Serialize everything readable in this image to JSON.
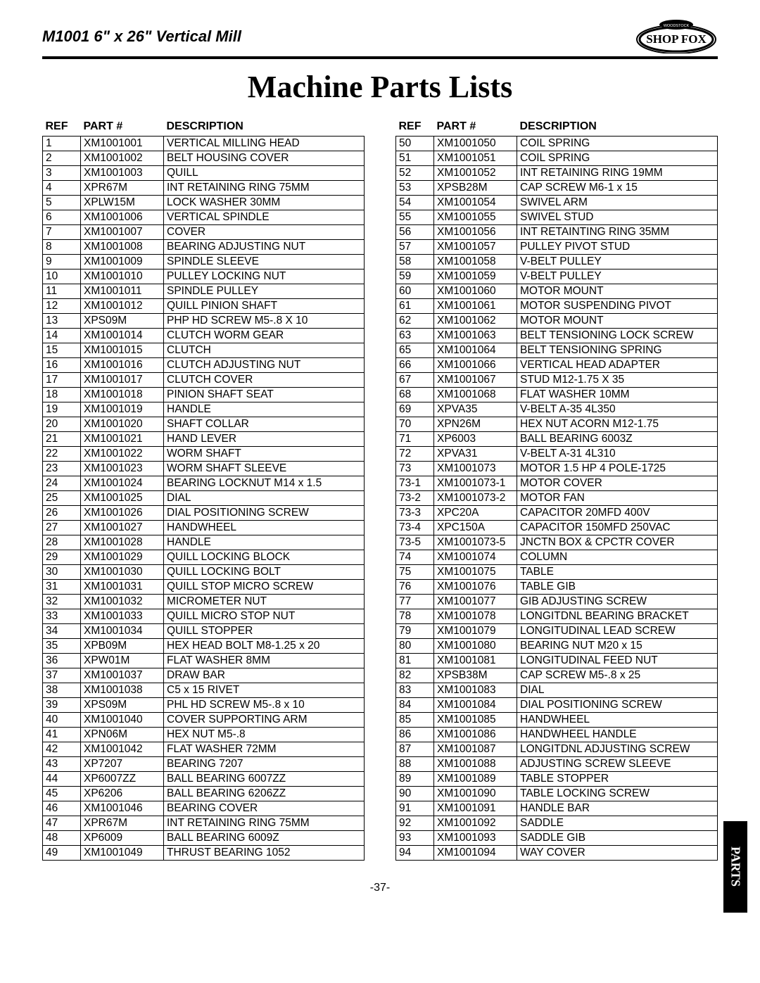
{
  "header": {
    "model": "M1001 6\" x 26\" Vertical Mill",
    "brand": "SHOP FOX",
    "brand_sub": "WOODSTOCK"
  },
  "title": "Machine Parts Lists",
  "page_number": "-37-",
  "side_tab": "PARTS",
  "columns": {
    "ref": "REF",
    "part": "PART #",
    "desc": "DESCRIPTION"
  },
  "table_left": [
    {
      "ref": "1",
      "part": "XM1001001",
      "desc": "VERTICAL MILLING HEAD"
    },
    {
      "ref": "2",
      "part": "XM1001002",
      "desc": "BELT HOUSING COVER"
    },
    {
      "ref": "3",
      "part": "XM1001003",
      "desc": "QUILL"
    },
    {
      "ref": "4",
      "part": "XPR67M",
      "desc": "INT RETAINING RING 75MM"
    },
    {
      "ref": "5",
      "part": "XPLW15M",
      "desc": "LOCK WASHER 30MM"
    },
    {
      "ref": "6",
      "part": "XM1001006",
      "desc": "VERTICAL SPINDLE"
    },
    {
      "ref": "7",
      "part": "XM1001007",
      "desc": "COVER"
    },
    {
      "ref": "8",
      "part": "XM1001008",
      "desc": "BEARING ADJUSTING NUT"
    },
    {
      "ref": "9",
      "part": "XM1001009",
      "desc": "SPINDLE SLEEVE"
    },
    {
      "ref": "10",
      "part": "XM1001010",
      "desc": "PULLEY LOCKING NUT"
    },
    {
      "ref": "11",
      "part": "XM1001011",
      "desc": "SPINDLE PULLEY"
    },
    {
      "ref": "12",
      "part": "XM1001012",
      "desc": "QUILL PINION SHAFT"
    },
    {
      "ref": "13",
      "part": "XPS09M",
      "desc": "PHP HD SCREW M5-.8 X 10"
    },
    {
      "ref": "14",
      "part": "XM1001014",
      "desc": "CLUTCH WORM GEAR"
    },
    {
      "ref": "15",
      "part": "XM1001015",
      "desc": "CLUTCH"
    },
    {
      "ref": "16",
      "part": "XM1001016",
      "desc": "CLUTCH ADJUSTING NUT"
    },
    {
      "ref": "17",
      "part": "XM1001017",
      "desc": "CLUTCH COVER"
    },
    {
      "ref": "18",
      "part": "XM1001018",
      "desc": "PINION SHAFT SEAT"
    },
    {
      "ref": "19",
      "part": "XM1001019",
      "desc": "HANDLE"
    },
    {
      "ref": "20",
      "part": "XM1001020",
      "desc": "SHAFT COLLAR"
    },
    {
      "ref": "21",
      "part": "XM1001021",
      "desc": "HAND LEVER"
    },
    {
      "ref": "22",
      "part": "XM1001022",
      "desc": "WORM SHAFT"
    },
    {
      "ref": "23",
      "part": "XM1001023",
      "desc": "WORM SHAFT SLEEVE"
    },
    {
      "ref": "24",
      "part": "XM1001024",
      "desc": "BEARING LOCKNUT M14 x 1.5"
    },
    {
      "ref": "25",
      "part": "XM1001025",
      "desc": "DIAL"
    },
    {
      "ref": "26",
      "part": "XM1001026",
      "desc": "DIAL POSITIONING SCREW"
    },
    {
      "ref": "27",
      "part": "XM1001027",
      "desc": "HANDWHEEL"
    },
    {
      "ref": "28",
      "part": "XM1001028",
      "desc": "HANDLE"
    },
    {
      "ref": "29",
      "part": "XM1001029",
      "desc": "QUILL LOCKING BLOCK"
    },
    {
      "ref": "30",
      "part": "XM1001030",
      "desc": "QUILL LOCKING BOLT"
    },
    {
      "ref": "31",
      "part": "XM1001031",
      "desc": "QUILL STOP MICRO SCREW"
    },
    {
      "ref": "32",
      "part": "XM1001032",
      "desc": "MICROMETER NUT"
    },
    {
      "ref": "33",
      "part": "XM1001033",
      "desc": "QUILL MICRO STOP NUT"
    },
    {
      "ref": "34",
      "part": "XM1001034",
      "desc": "QUILL STOPPER"
    },
    {
      "ref": "35",
      "part": "XPB09M",
      "desc": "HEX HEAD BOLT M8-1.25 x 20"
    },
    {
      "ref": "36",
      "part": "XPW01M",
      "desc": "FLAT WASHER 8MM"
    },
    {
      "ref": "37",
      "part": "XM1001037",
      "desc": "DRAW BAR"
    },
    {
      "ref": "38",
      "part": "XM1001038",
      "desc": "C5 x 15 RIVET"
    },
    {
      "ref": "39",
      "part": "XPS09M",
      "desc": "PHL HD SCREW M5-.8 x 10"
    },
    {
      "ref": "40",
      "part": "XM1001040",
      "desc": "COVER SUPPORTING ARM"
    },
    {
      "ref": "41",
      "part": "XPN06M",
      "desc": "HEX NUT M5-.8"
    },
    {
      "ref": "42",
      "part": "XM1001042",
      "desc": "FLAT WASHER 72MM"
    },
    {
      "ref": "43",
      "part": "XP7207",
      "desc": "BEARING 7207"
    },
    {
      "ref": "44",
      "part": "XP6007ZZ",
      "desc": "BALL BEARING 6007ZZ"
    },
    {
      "ref": "45",
      "part": "XP6206",
      "desc": "BALL BEARING 6206ZZ"
    },
    {
      "ref": "46",
      "part": "XM1001046",
      "desc": "BEARING COVER"
    },
    {
      "ref": "47",
      "part": "XPR67M",
      "desc": "INT RETAINING RING 75MM"
    },
    {
      "ref": "48",
      "part": "XP6009",
      "desc": "BALL BEARING 6009Z"
    },
    {
      "ref": "49",
      "part": "XM1001049",
      "desc": "THRUST BEARING 1052"
    }
  ],
  "table_right": [
    {
      "ref": "50",
      "part": "XM1001050",
      "desc": "COIL SPRING"
    },
    {
      "ref": "51",
      "part": "XM1001051",
      "desc": "COIL SPRING"
    },
    {
      "ref": "52",
      "part": "XM1001052",
      "desc": "INT RETAINING RING 19MM"
    },
    {
      "ref": "53",
      "part": "XPSB28M",
      "desc": "CAP SCREW M6-1 x 15"
    },
    {
      "ref": "54",
      "part": "XM1001054",
      "desc": "SWIVEL ARM"
    },
    {
      "ref": "55",
      "part": "XM1001055",
      "desc": "SWIVEL STUD"
    },
    {
      "ref": "56",
      "part": "XM1001056",
      "desc": "INT RETAINTING RING 35MM"
    },
    {
      "ref": "57",
      "part": "XM1001057",
      "desc": "PULLEY PIVOT STUD"
    },
    {
      "ref": "58",
      "part": "XM1001058",
      "desc": "V-BELT PULLEY"
    },
    {
      "ref": "59",
      "part": "XM1001059",
      "desc": "V-BELT PULLEY"
    },
    {
      "ref": "60",
      "part": "XM1001060",
      "desc": "MOTOR MOUNT"
    },
    {
      "ref": "61",
      "part": "XM1001061",
      "desc": "MOTOR SUSPENDING PIVOT"
    },
    {
      "ref": "62",
      "part": "XM1001062",
      "desc": "MOTOR MOUNT"
    },
    {
      "ref": "63",
      "part": "XM1001063",
      "desc": "BELT TENSIONING LOCK SCREW"
    },
    {
      "ref": "65",
      "part": "XM1001064",
      "desc": "BELT TENSIONING SPRING"
    },
    {
      "ref": "66",
      "part": "XM1001066",
      "desc": "VERTICAL HEAD ADAPTER"
    },
    {
      "ref": "67",
      "part": "XM1001067",
      "desc": "STUD M12-1.75 X 35"
    },
    {
      "ref": "68",
      "part": "XM1001068",
      "desc": "FLAT WASHER 10MM"
    },
    {
      "ref": "69",
      "part": "XPVA35",
      "desc": "V-BELT A-35 4L350"
    },
    {
      "ref": "70",
      "part": "XPN26M",
      "desc": "HEX NUT ACORN M12-1.75"
    },
    {
      "ref": "71",
      "part": "XP6003",
      "desc": "BALL BEARING 6003Z"
    },
    {
      "ref": "72",
      "part": "XPVA31",
      "desc": "V-BELT A-31 4L310"
    },
    {
      "ref": "73",
      "part": "XM1001073",
      "desc": "MOTOR 1.5 HP 4 POLE-1725"
    },
    {
      "ref": "73-1",
      "part": "XM1001073-1",
      "desc": "MOTOR COVER"
    },
    {
      "ref": "73-2",
      "part": "XM1001073-2",
      "desc": "MOTOR FAN"
    },
    {
      "ref": "73-3",
      "part": "XPC20A",
      "desc": "CAPACITOR 20MFD 400V"
    },
    {
      "ref": "73-4",
      "part": "XPC150A",
      "desc": "CAPACITOR 150MFD 250VAC"
    },
    {
      "ref": "73-5",
      "part": "XM1001073-5",
      "desc": "JNCTN BOX & CPCTR COVER"
    },
    {
      "ref": "74",
      "part": "XM1001074",
      "desc": "COLUMN"
    },
    {
      "ref": "75",
      "part": "XM1001075",
      "desc": "TABLE"
    },
    {
      "ref": "76",
      "part": "XM1001076",
      "desc": "TABLE GIB"
    },
    {
      "ref": "77",
      "part": "XM1001077",
      "desc": "GIB ADJUSTING SCREW"
    },
    {
      "ref": "78",
      "part": "XM1001078",
      "desc": "LONGITDNL BEARING BRACKET"
    },
    {
      "ref": "79",
      "part": "XM1001079",
      "desc": "LONGITUDINAL LEAD SCREW"
    },
    {
      "ref": "80",
      "part": "XM1001080",
      "desc": "BEARING NUT M20 x 15"
    },
    {
      "ref": "81",
      "part": "XM1001081",
      "desc": "LONGITUDINAL FEED NUT"
    },
    {
      "ref": "82",
      "part": "XPSB38M",
      "desc": "CAP SCREW M5-.8 x 25"
    },
    {
      "ref": "83",
      "part": "XM1001083",
      "desc": "DIAL"
    },
    {
      "ref": "84",
      "part": "XM1001084",
      "desc": "DIAL POSITIONING SCREW"
    },
    {
      "ref": "85",
      "part": "XM1001085",
      "desc": "HANDWHEEL"
    },
    {
      "ref": "86",
      "part": "XM1001086",
      "desc": "HANDWHEEL HANDLE"
    },
    {
      "ref": "87",
      "part": "XM1001087",
      "desc": "LONGITDNL ADJUSTING SCREW"
    },
    {
      "ref": "88",
      "part": "XM1001088",
      "desc": "ADJUSTING SCREW SLEEVE"
    },
    {
      "ref": "89",
      "part": "XM1001089",
      "desc": "TABLE STOPPER"
    },
    {
      "ref": "90",
      "part": "XM1001090",
      "desc": "TABLE LOCKING SCREW"
    },
    {
      "ref": "91",
      "part": "XM1001091",
      "desc": "HANDLE BAR"
    },
    {
      "ref": "92",
      "part": "XM1001092",
      "desc": "SADDLE"
    },
    {
      "ref": "93",
      "part": "XM1001093",
      "desc": "SADDLE GIB"
    },
    {
      "ref": "94",
      "part": "XM1001094",
      "desc": "WAY COVER"
    }
  ]
}
